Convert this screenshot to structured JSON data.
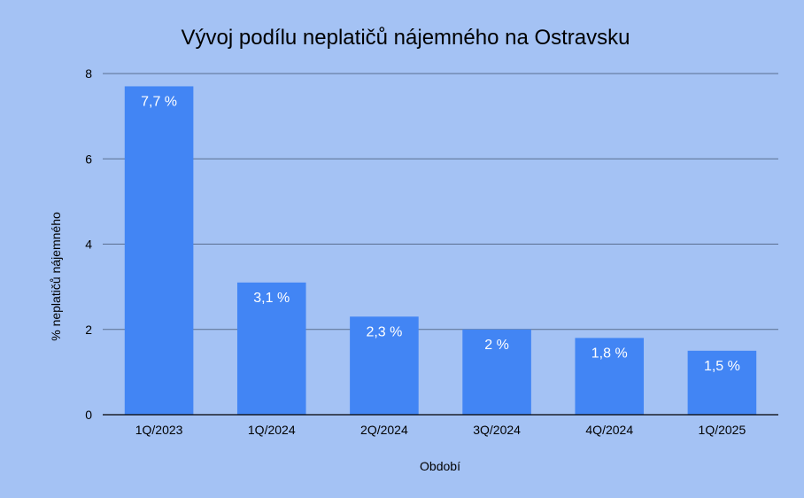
{
  "chart_data": {
    "type": "bar",
    "title": "Vývoj podílu neplatičů nájemného na Ostravsku",
    "xlabel": "Období",
    "ylabel": "% neplatičů nájemného",
    "categories": [
      "1Q/2023",
      "1Q/2024",
      "2Q/2024",
      "3Q/2024",
      "4Q/2024",
      "1Q/2025"
    ],
    "values": [
      7.7,
      3.1,
      2.3,
      2.0,
      1.8,
      1.5
    ],
    "data_labels": [
      "7,7 %",
      "3,1 %",
      "2,3 %",
      "2 %",
      "1,8 %",
      "1,5 %"
    ],
    "y_ticks": [
      "0",
      "2",
      "4",
      "6",
      "8"
    ],
    "ylim": [
      0,
      8
    ],
    "grid": true,
    "legend": "none",
    "colors": {
      "background": "#a4c2f4",
      "bar": "#4285f4",
      "grid": "#5a6e8f",
      "axis": "#000000",
      "label": "#ffffff"
    }
  }
}
